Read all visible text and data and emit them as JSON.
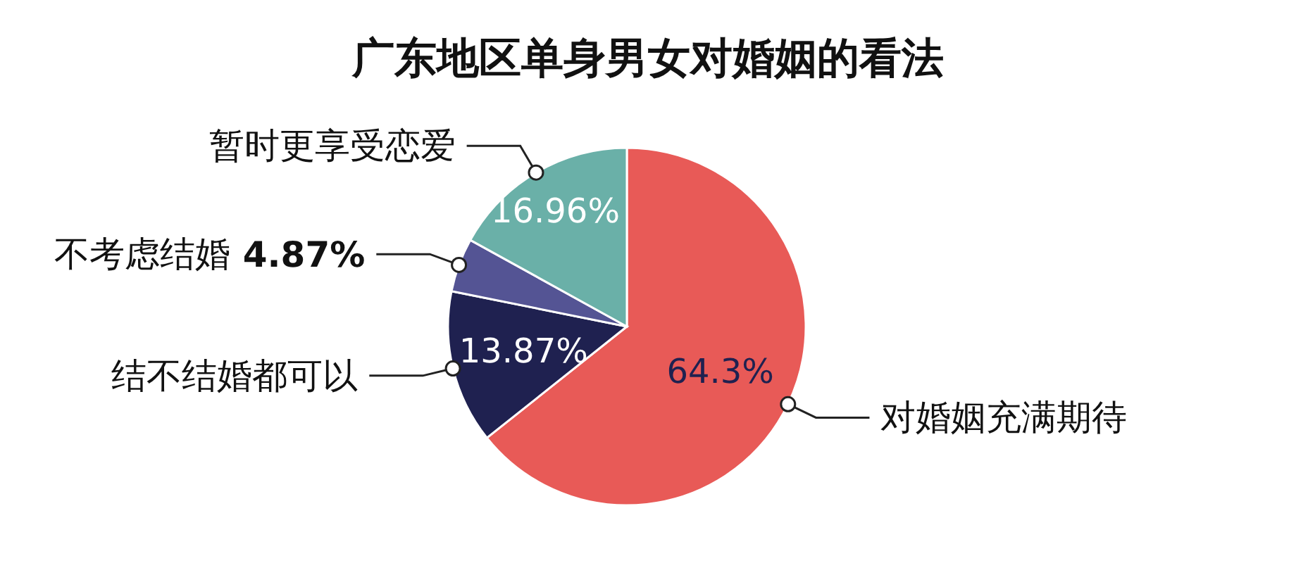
{
  "chart_data": {
    "type": "pie",
    "title": "广东地区单身男女对婚姻的看法",
    "categories": [
      "对婚姻充满期待",
      "结不结婚都可以",
      "不考虑结婚",
      "暂时更享受恋爱"
    ],
    "values": [
      64.3,
      13.87,
      4.87,
      16.96
    ],
    "colors": [
      "#e85a57",
      "#1f2150",
      "#545494",
      "#6ab0a8"
    ],
    "value_labels": [
      "64.3%",
      "13.87%",
      "4.87%",
      "16.96%"
    ],
    "legend": false
  }
}
